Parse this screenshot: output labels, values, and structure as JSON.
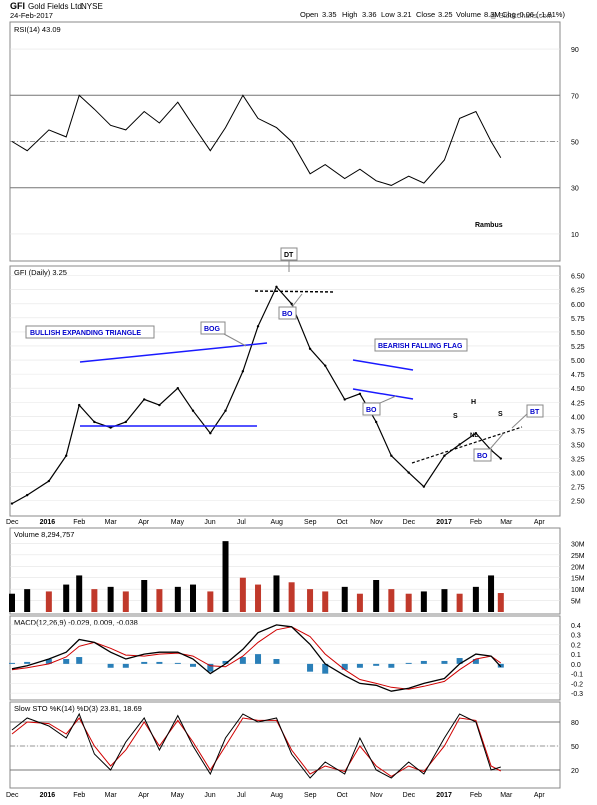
{
  "header": {
    "symbol": "GFI",
    "company": "Gold Fields Ltd.",
    "exchange": "NYSE",
    "date": "24-Feb-2017",
    "quote": {
      "open_label": "Open",
      "open": "3.35",
      "high_label": "High",
      "high": "3.36",
      "low_label": "Low",
      "low": "3.21",
      "close_label": "Close",
      "close": "3.25",
      "volume_label": "Volume",
      "volume": "8.3M",
      "chg_label": "Chg",
      "chg": "-0.06 (-1.81%)"
    },
    "watermark": "@ StockCharts.com"
  },
  "colors": {
    "price": "#000000",
    "trendline": "#1a1aff",
    "macd_fast": "#000000",
    "macd_signal": "#d00000",
    "histogram": "#2a7fb8",
    "volume_up": "#000000",
    "volume_down": "#c0392b",
    "grid": "#bbbbbb",
    "label_text": "#0000cc"
  },
  "chart_data": [
    {
      "type": "line",
      "panel": "rsi",
      "legend": "RSI(14) 43.09",
      "annotation": "Rambus",
      "ylim": [
        0,
        100
      ],
      "yticks": [
        10,
        30,
        50,
        70,
        90
      ],
      "reference_lines": [
        30,
        50,
        70
      ],
      "x": [
        "2015-12-01",
        "2015-12-15",
        "2016-01-04",
        "2016-01-20",
        "2016-02-01",
        "2016-02-15",
        "2016-03-01",
        "2016-03-15",
        "2016-04-01",
        "2016-04-15",
        "2016-05-02",
        "2016-05-16",
        "2016-06-01",
        "2016-06-15",
        "2016-07-01",
        "2016-07-15",
        "2016-08-01",
        "2016-08-15",
        "2016-09-01",
        "2016-09-15",
        "2016-10-03",
        "2016-10-17",
        "2016-11-01",
        "2016-11-15",
        "2016-12-01",
        "2016-12-15",
        "2017-01-03",
        "2017-01-17",
        "2017-02-01",
        "2017-02-15",
        "2017-02-24"
      ],
      "values": [
        50,
        46,
        55,
        52,
        70,
        64,
        57,
        55,
        63,
        58,
        67,
        57,
        46,
        56,
        70,
        60,
        56,
        50,
        36,
        40,
        34,
        38,
        33,
        31,
        35,
        32,
        42,
        60,
        63,
        50,
        43
      ]
    },
    {
      "type": "line",
      "panel": "price",
      "legend": "GFI (Daily) 3.25",
      "ylim": [
        2.3,
        6.6
      ],
      "yticks": [
        2.5,
        2.75,
        3.0,
        3.25,
        3.5,
        3.75,
        4.0,
        4.25,
        4.5,
        4.75,
        5.0,
        5.25,
        5.5,
        5.75,
        6.0,
        6.25,
        6.5
      ],
      "ytick_labels": [
        "2.50",
        "2.75",
        "3.00",
        "3.25",
        "3.50",
        "3.75",
        "4.00",
        "4.25",
        "4.50",
        "4.75",
        "5.00",
        "5.25",
        "5.50",
        "5.75",
        "6.00",
        "6.25",
        "6.50"
      ],
      "x": [
        "2015-12-01",
        "2015-12-15",
        "2016-01-04",
        "2016-01-20",
        "2016-02-01",
        "2016-02-15",
        "2016-03-01",
        "2016-03-15",
        "2016-04-01",
        "2016-04-15",
        "2016-05-02",
        "2016-05-16",
        "2016-06-01",
        "2016-06-15",
        "2016-07-01",
        "2016-07-15",
        "2016-08-01",
        "2016-08-15",
        "2016-09-01",
        "2016-09-15",
        "2016-10-03",
        "2016-10-17",
        "2016-11-01",
        "2016-11-15",
        "2016-12-01",
        "2016-12-15",
        "2017-01-03",
        "2017-01-17",
        "2017-02-01",
        "2017-02-15",
        "2017-02-24"
      ],
      "values": [
        2.45,
        2.6,
        2.85,
        3.3,
        4.2,
        3.9,
        3.8,
        3.9,
        4.3,
        4.2,
        4.5,
        4.1,
        3.7,
        4.1,
        4.8,
        5.6,
        6.3,
        6.0,
        5.2,
        4.9,
        4.3,
        4.4,
        3.9,
        3.3,
        3.0,
        2.75,
        3.3,
        3.5,
        3.7,
        3.4,
        3.25
      ],
      "annotations": [
        "BULLISH EXPANDING TRIANGLE",
        "BOG",
        "DT",
        "BO",
        "BEARISH FALLING FLAG",
        "BO",
        "H",
        "S",
        "S",
        "NL",
        "BO",
        "BT"
      ]
    },
    {
      "type": "bar",
      "panel": "volume",
      "legend": "Volume 8,294,757",
      "ylim": [
        0,
        35
      ],
      "yticks": [
        5,
        10,
        15,
        20,
        25,
        30
      ],
      "ytick_labels": [
        "5M",
        "10M",
        "15M",
        "20M",
        "25M",
        "30M"
      ],
      "x": [
        "2015-12-01",
        "2015-12-15",
        "2016-01-04",
        "2016-01-20",
        "2016-02-01",
        "2016-02-15",
        "2016-03-01",
        "2016-03-15",
        "2016-04-01",
        "2016-04-15",
        "2016-05-02",
        "2016-05-16",
        "2016-06-01",
        "2016-06-15",
        "2016-07-01",
        "2016-07-15",
        "2016-08-01",
        "2016-08-15",
        "2016-09-01",
        "2016-09-15",
        "2016-10-03",
        "2016-10-17",
        "2016-11-01",
        "2016-11-15",
        "2016-12-01",
        "2016-12-15",
        "2017-01-03",
        "2017-01-17",
        "2017-02-01",
        "2017-02-15",
        "2017-02-24"
      ],
      "values": [
        8,
        10,
        9,
        12,
        16,
        10,
        11,
        9,
        14,
        10,
        11,
        12,
        9,
        31,
        15,
        12,
        16,
        13,
        10,
        9,
        11,
        8,
        14,
        10,
        8,
        9,
        10,
        8,
        11,
        16,
        8.3
      ]
    },
    {
      "type": "line",
      "panel": "macd",
      "legend": "MACD(12,26,9) -0.029, 0.009, -0.038",
      "ylim": [
        -0.35,
        0.45
      ],
      "yticks": [
        -0.3,
        -0.2,
        -0.1,
        0.0,
        0.1,
        0.2,
        0.3,
        0.4
      ],
      "ytick_labels": [
        "-0.3",
        "-0.2",
        "-0.1",
        "0.0",
        "0.1",
        "0.2",
        "0.3",
        "0.4"
      ],
      "x": [
        "2015-12-01",
        "2015-12-15",
        "2016-01-04",
        "2016-01-20",
        "2016-02-01",
        "2016-02-15",
        "2016-03-01",
        "2016-03-15",
        "2016-04-01",
        "2016-04-15",
        "2016-05-02",
        "2016-05-16",
        "2016-06-01",
        "2016-06-15",
        "2016-07-01",
        "2016-07-15",
        "2016-08-01",
        "2016-08-15",
        "2016-09-01",
        "2016-09-15",
        "2016-10-03",
        "2016-10-17",
        "2016-11-01",
        "2016-11-15",
        "2016-12-01",
        "2016-12-15",
        "2017-01-03",
        "2017-01-17",
        "2017-02-01",
        "2017-02-15",
        "2017-02-24"
      ],
      "series": [
        {
          "name": "MACD(12,26,9)",
          "values": [
            -0.05,
            -0.02,
            0.05,
            0.12,
            0.25,
            0.22,
            0.12,
            0.05,
            0.1,
            0.12,
            0.12,
            0.05,
            -0.1,
            0.0,
            0.15,
            0.32,
            0.4,
            0.38,
            0.2,
            0.0,
            -0.12,
            -0.2,
            -0.22,
            -0.28,
            -0.25,
            -0.2,
            -0.15,
            0.0,
            0.1,
            0.08,
            -0.029
          ]
        },
        {
          "name": "signal",
          "values": [
            -0.06,
            -0.04,
            0.0,
            0.07,
            0.18,
            0.22,
            0.16,
            0.09,
            0.08,
            0.1,
            0.11,
            0.08,
            -0.02,
            -0.03,
            0.08,
            0.22,
            0.35,
            0.38,
            0.28,
            0.1,
            -0.06,
            -0.16,
            -0.2,
            -0.24,
            -0.26,
            -0.23,
            -0.18,
            -0.06,
            0.05,
            0.08,
            0.009
          ]
        },
        {
          "name": "histogram",
          "values": [
            0.01,
            0.02,
            0.05,
            0.05,
            0.07,
            0.0,
            -0.04,
            -0.04,
            0.02,
            0.02,
            0.01,
            -0.03,
            -0.08,
            0.03,
            0.07,
            0.1,
            0.05,
            0.0,
            -0.08,
            -0.1,
            -0.06,
            -0.04,
            -0.02,
            -0.04,
            0.01,
            0.03,
            0.03,
            0.06,
            0.05,
            0.0,
            -0.038
          ]
        }
      ]
    },
    {
      "type": "line",
      "panel": "stochastic",
      "legend": "Slow STO %K(14) %D(3) 23.81, 18.69",
      "ylim": [
        0,
        100
      ],
      "yticks": [
        20,
        50,
        80
      ],
      "reference_lines": [
        20,
        50,
        80
      ],
      "x": [
        "2015-12-01",
        "2015-12-15",
        "2016-01-04",
        "2016-01-20",
        "2016-02-01",
        "2016-02-15",
        "2016-03-01",
        "2016-03-15",
        "2016-04-01",
        "2016-04-15",
        "2016-05-02",
        "2016-05-16",
        "2016-06-01",
        "2016-06-15",
        "2016-07-01",
        "2016-07-15",
        "2016-08-01",
        "2016-08-15",
        "2016-09-01",
        "2016-09-15",
        "2016-10-03",
        "2016-10-17",
        "2016-11-01",
        "2016-11-15",
        "2016-12-01",
        "2016-12-15",
        "2017-01-03",
        "2017-01-17",
        "2017-02-01",
        "2017-02-15",
        "2017-02-24"
      ],
      "series": [
        {
          "name": "%K(14)",
          "values": [
            70,
            85,
            75,
            60,
            90,
            40,
            20,
            55,
            85,
            45,
            88,
            50,
            15,
            60,
            90,
            80,
            85,
            40,
            10,
            30,
            15,
            60,
            20,
            10,
            30,
            15,
            60,
            90,
            80,
            20,
            23.81
          ]
        },
        {
          "name": "%D(3)",
          "values": [
            65,
            80,
            78,
            65,
            85,
            50,
            25,
            45,
            80,
            50,
            82,
            55,
            20,
            50,
            85,
            82,
            82,
            45,
            15,
            25,
            18,
            50,
            25,
            12,
            25,
            18,
            50,
            85,
            82,
            25,
            18.69
          ]
        }
      ]
    }
  ],
  "x_axis_labels": [
    "Dec",
    "2016",
    "Feb",
    "Mar",
    "Apr",
    "May",
    "Jun",
    "Jul",
    "Aug",
    "Sep",
    "Oct",
    "Nov",
    "Dec",
    "2017",
    "Feb",
    "Mar",
    "Apr"
  ],
  "x_axis_bold": [
    "2016",
    "2017"
  ]
}
